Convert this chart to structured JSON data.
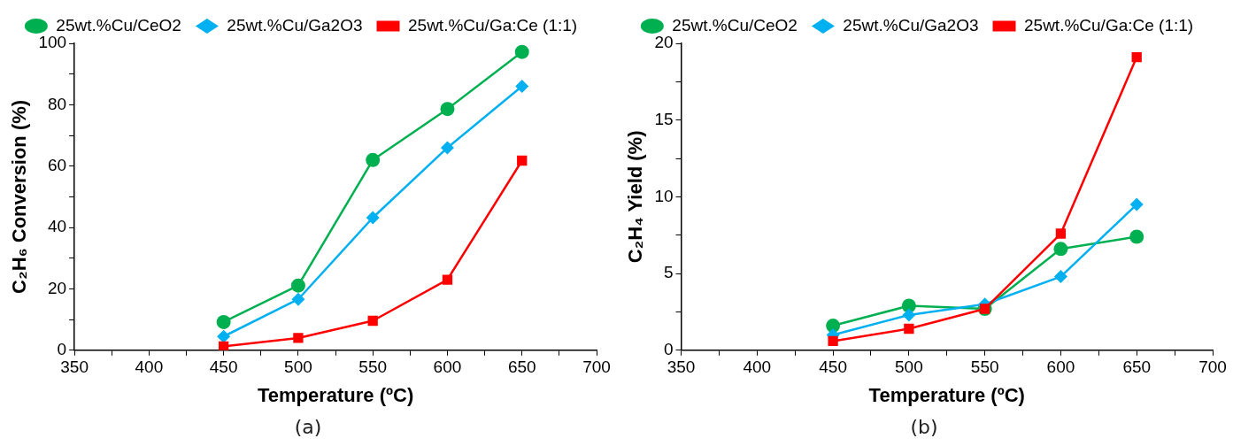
{
  "chart_data": [
    {
      "type": "line",
      "xlabel": "Temperature (ºC)",
      "ylabel": "C₂H₆ Conversion (%)",
      "x": [
        450,
        500,
        550,
        600,
        650
      ],
      "series": [
        {
          "name": "25wt.%Cu/CeO2",
          "color": "#00b050",
          "marker": "circle",
          "values": [
            9.2,
            21.1,
            62,
            78.6,
            97.2
          ]
        },
        {
          "name": "25wt.%Cu/Ga2O3",
          "color": "#00b0f0",
          "marker": "diamond",
          "values": [
            4.5,
            16.6,
            43.2,
            66,
            86
          ]
        },
        {
          "name": "25wt.%Cu/Ga:Ce (1:1)",
          "color": "#ff0000",
          "marker": "square",
          "values": [
            1.3,
            4,
            9.6,
            23,
            61.8
          ]
        }
      ],
      "xlim": [
        350,
        700
      ],
      "xticks": [
        350,
        {
          "value": 375,
          "label": null
        },
        400,
        {
          "value": 425,
          "label": null
        },
        450,
        {
          "value": 475,
          "label": null
        },
        500,
        {
          "value": 525,
          "label": null
        },
        550,
        {
          "value": 575,
          "label": null
        },
        600,
        {
          "value": 625,
          "label": null
        },
        650,
        {
          "value": 675,
          "label": null
        },
        700
      ],
      "ylim": [
        0,
        100
      ],
      "yticks": [
        0,
        {
          "value": 10,
          "label": null
        },
        20,
        {
          "value": 30,
          "label": null
        },
        40,
        {
          "value": 50,
          "label": null
        },
        60,
        {
          "value": 70,
          "label": null
        },
        80,
        {
          "value": 90,
          "label": null
        },
        100
      ],
      "grid": false,
      "legend": "top",
      "line_style": "solid",
      "annotations": [
        "(a)"
      ]
    },
    {
      "type": "line",
      "xlabel": "Temperature (ºC)",
      "ylabel": "C₂H₄ Yield (%)",
      "x": [
        450,
        500,
        550,
        600,
        650
      ],
      "series": [
        {
          "name": "25wt.%Cu/CeO2",
          "color": "#00b050",
          "marker": "circle",
          "values": [
            1.6,
            2.9,
            2.7,
            6.6,
            7.4
          ]
        },
        {
          "name": "25wt.%Cu/Ga2O3",
          "color": "#00b0f0",
          "marker": "diamond",
          "values": [
            1.0,
            2.3,
            3.0,
            4.8,
            9.5
          ]
        },
        {
          "name": "25wt.%Cu/Ga:Ce (1:1)",
          "color": "#ff0000",
          "marker": "square",
          "values": [
            0.6,
            1.4,
            2.7,
            7.6,
            19.1
          ]
        }
      ],
      "xlim": [
        350,
        700
      ],
      "xticks": [
        350,
        {
          "value": 375,
          "label": null
        },
        400,
        {
          "value": 425,
          "label": null
        },
        450,
        {
          "value": 475,
          "label": null
        },
        500,
        {
          "value": 525,
          "label": null
        },
        550,
        {
          "value": 575,
          "label": null
        },
        600,
        {
          "value": 625,
          "label": null
        },
        650,
        {
          "value": 675,
          "label": null
        },
        700
      ],
      "ylim": [
        0,
        20
      ],
      "yticks": [
        0,
        {
          "value": 2.5,
          "label": null
        },
        5,
        {
          "value": 7.5,
          "label": null
        },
        10,
        {
          "value": 12.5,
          "label": null
        },
        15,
        {
          "value": 17.5,
          "label": null
        },
        20
      ],
      "grid": false,
      "legend": "top",
      "line_style": "solid",
      "annotations": [
        "(b)"
      ]
    }
  ]
}
